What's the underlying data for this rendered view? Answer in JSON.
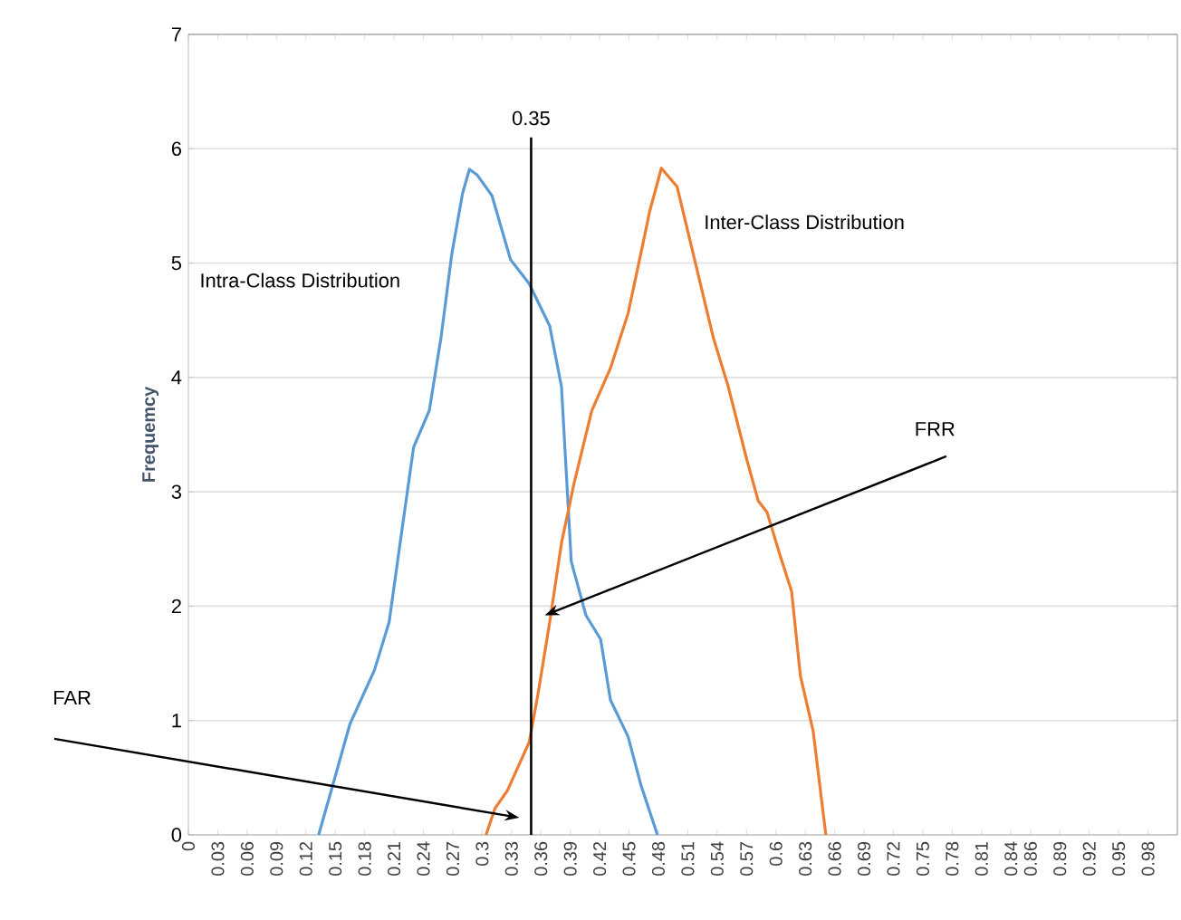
{
  "chart_data": {
    "type": "line",
    "ylabel": "Frequemcy",
    "xlim": [
      0,
      1.01
    ],
    "xticks": [
      {
        "value": 0,
        "label": "0"
      },
      {
        "value": 0.03,
        "label": "0.03"
      },
      {
        "value": 0.06,
        "label": "0.06"
      },
      {
        "value": 0.09,
        "label": "0.09"
      },
      {
        "value": 0.12,
        "label": "0.12"
      },
      {
        "value": 0.15,
        "label": "0.15"
      },
      {
        "value": 0.18,
        "label": "0.18"
      },
      {
        "value": 0.21,
        "label": "0.21"
      },
      {
        "value": 0.24,
        "label": "0.24"
      },
      {
        "value": 0.27,
        "label": "0.27"
      },
      {
        "value": 0.3,
        "label": "0.3"
      },
      {
        "value": 0.33,
        "label": "0.33"
      },
      {
        "value": 0.36,
        "label": "0.36"
      },
      {
        "value": 0.39,
        "label": "0.39"
      },
      {
        "value": 0.42,
        "label": "0.42"
      },
      {
        "value": 0.45,
        "label": "0.45"
      },
      {
        "value": 0.48,
        "label": "0.48"
      },
      {
        "value": 0.51,
        "label": "0.51"
      },
      {
        "value": 0.54,
        "label": "0.54"
      },
      {
        "value": 0.57,
        "label": "0.57"
      },
      {
        "value": 0.6,
        "label": "0.6"
      },
      {
        "value": 0.63,
        "label": "0.63"
      },
      {
        "value": 0.66,
        "label": "0.66"
      },
      {
        "value": 0.69,
        "label": "0.69"
      },
      {
        "value": 0.72,
        "label": "0.72"
      },
      {
        "value": 0.75,
        "label": "0.75"
      },
      {
        "value": 0.78,
        "label": "0.78"
      },
      {
        "value": 0.81,
        "label": "0.81"
      },
      {
        "value": 0.84,
        "label": "0.84"
      },
      {
        "value": 0.86,
        "label": "0.86"
      },
      {
        "value": 0.89,
        "label": "0.89"
      },
      {
        "value": 0.92,
        "label": "0.92"
      },
      {
        "value": 0.95,
        "label": "0.95"
      },
      {
        "value": 0.98,
        "label": "0.98"
      }
    ],
    "ylim": [
      0,
      7
    ],
    "yticks": [
      0,
      1,
      2,
      3,
      4,
      5,
      6,
      7
    ],
    "grid": "y",
    "marker": "none",
    "line_style": "solid",
    "legend": false,
    "series": [
      {
        "name": "Intra-Class Distribution",
        "color": "#5b9bd5",
        "x": [
          0.133,
          0.144,
          0.165,
          0.19,
          0.205,
          0.218,
          0.23,
          0.246,
          0.258,
          0.269,
          0.28,
          0.287,
          0.295,
          0.31,
          0.329,
          0.348,
          0.369,
          0.381,
          0.391,
          0.406,
          0.421,
          0.431,
          0.449,
          0.462,
          0.479
        ],
        "values": [
          0,
          0.33,
          0.97,
          1.44,
          1.86,
          2.66,
          3.39,
          3.71,
          4.35,
          5.08,
          5.61,
          5.82,
          5.77,
          5.59,
          5.03,
          4.82,
          4.45,
          3.92,
          2.39,
          1.92,
          1.71,
          1.18,
          0.86,
          0.44,
          0
        ]
      },
      {
        "name": "Inter-Class Distribution",
        "color": "#ed7d31",
        "x": [
          0.304,
          0.313,
          0.326,
          0.348,
          0.357,
          0.369,
          0.381,
          0.394,
          0.412,
          0.431,
          0.449,
          0.462,
          0.471,
          0.483,
          0.499,
          0.517,
          0.536,
          0.551,
          0.57,
          0.582,
          0.591,
          0.604,
          0.616,
          0.625,
          0.638,
          0.644,
          0.651
        ],
        "values": [
          0,
          0.23,
          0.39,
          0.81,
          1.23,
          1.86,
          2.55,
          3.08,
          3.71,
          4.08,
          4.56,
          5.08,
          5.45,
          5.83,
          5.67,
          5.03,
          4.35,
          3.93,
          3.29,
          2.92,
          2.82,
          2.45,
          2.13,
          1.39,
          0.91,
          0.49,
          0
        ]
      }
    ],
    "ref_lines": [
      {
        "axis": "x",
        "value": 0.35,
        "label": "0.35",
        "color": "#000000"
      }
    ],
    "annotations": [
      "FAR",
      {
        "text": "FRR",
        "x": 0.364,
        "y": 1.92
      }
    ]
  }
}
